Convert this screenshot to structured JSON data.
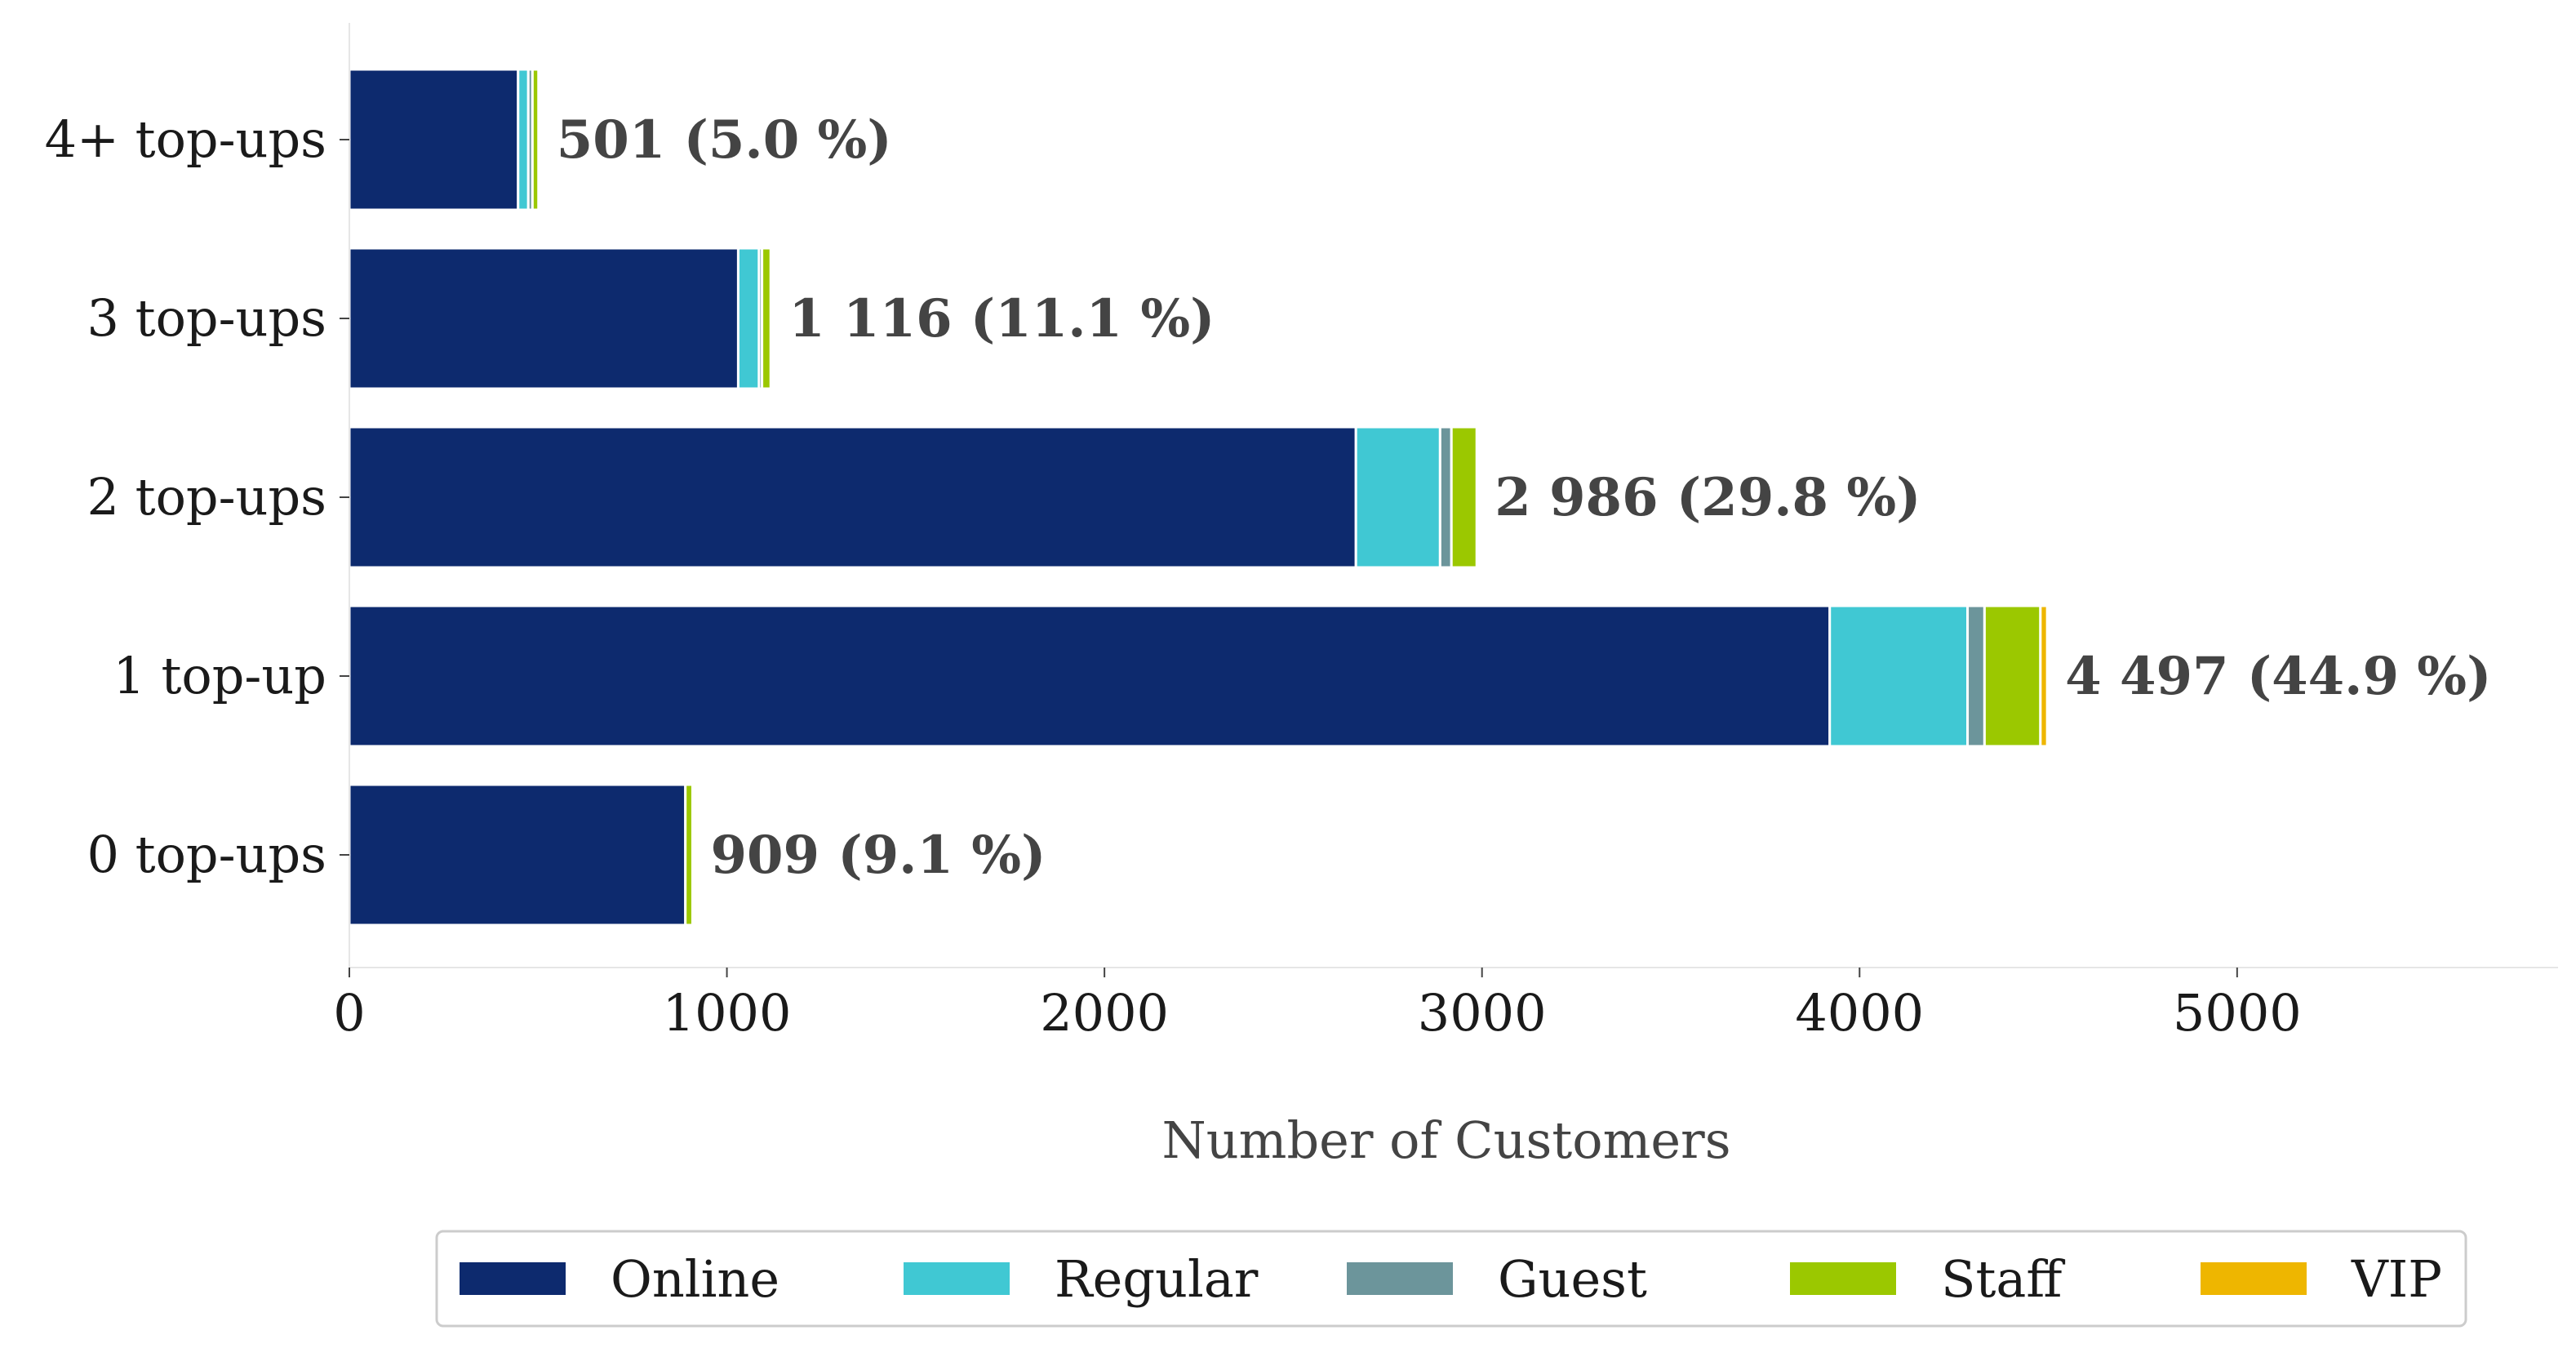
{
  "chart_data": {
    "type": "bar",
    "orientation": "horizontal",
    "stacked": true,
    "categories": [
      "4+ top-ups",
      "3 top-ups",
      "2 top-ups",
      "1 top-up",
      "0 top-ups"
    ],
    "series": [
      {
        "name": "Online",
        "color": "#0d2a6e",
        "values": [
          447,
          1030,
          2666,
          3921,
          890
        ]
      },
      {
        "name": "Regular",
        "color": "#40c8d3",
        "values": [
          27,
          55,
          223,
          365,
          0
        ]
      },
      {
        "name": "Guest",
        "color": "#6c959b",
        "values": [
          11,
          8,
          30,
          45,
          0
        ]
      },
      {
        "name": "Staff",
        "color": "#9bc800",
        "values": [
          16,
          23,
          67,
          148,
          19
        ]
      },
      {
        "name": "VIP",
        "color": "#eeb600",
        "values": [
          0,
          0,
          0,
          18,
          0
        ]
      }
    ],
    "totals": [
      501,
      1116,
      2986,
      4497,
      909
    ],
    "total_labels": [
      "501 (5.0 %)",
      "1 116 (11.1 %)",
      "2 986 (29.8 %)",
      "4 497 (44.9 %)",
      "909 (9.1 %)"
    ],
    "x_ticks": [
      "0",
      "1000",
      "2000",
      "3000",
      "4000",
      "5000"
    ],
    "xlim": [
      0,
      5850
    ],
    "xlabel": "Number of Customers",
    "ylabel": "",
    "title": "",
    "legend": {
      "placement": "bottom",
      "entries": [
        "Online",
        "Regular",
        "Guest",
        "Staff",
        "VIP"
      ]
    },
    "grid": false,
    "label_color": "#444444"
  }
}
